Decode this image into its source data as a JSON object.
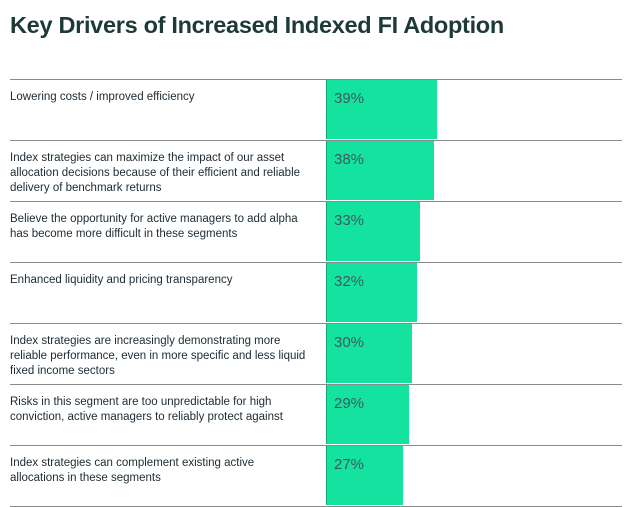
{
  "title": "Key Drivers of Increased Indexed FI Adoption",
  "chart_data": {
    "type": "bar",
    "orientation": "horizontal",
    "title": "Key Drivers of Increased Indexed FI Adoption",
    "value_suffix": "%",
    "grid": false,
    "categories": [
      "Lowering costs / improved efficiency",
      "Index strategies can maximize the impact of our asset allocation decisions because of their efficient and reliable delivery of benchmark returns",
      "Believe the opportunity for active managers to add alpha has become more difficult in these segments",
      "Enhanced liquidity and pricing transparency",
      "Index strategies are increasingly demonstrating more reliable performance, even in more specific and less liquid fixed income sectors",
      "Risks in this segment are too unpredictable for high conviction, active managers to reliably protect against",
      "Index strategies can complement existing active allocations in these segments"
    ],
    "values": [
      39,
      38,
      33,
      32,
      30,
      29,
      27
    ],
    "labels": [
      "39%",
      "38%",
      "33%",
      "32%",
      "30%",
      "29%",
      "27%"
    ],
    "colors": {
      "bar": "#14e3a0",
      "bar_edge": "#0fa574",
      "title": "#1d3a36",
      "value_text": "#3c5a60"
    }
  }
}
